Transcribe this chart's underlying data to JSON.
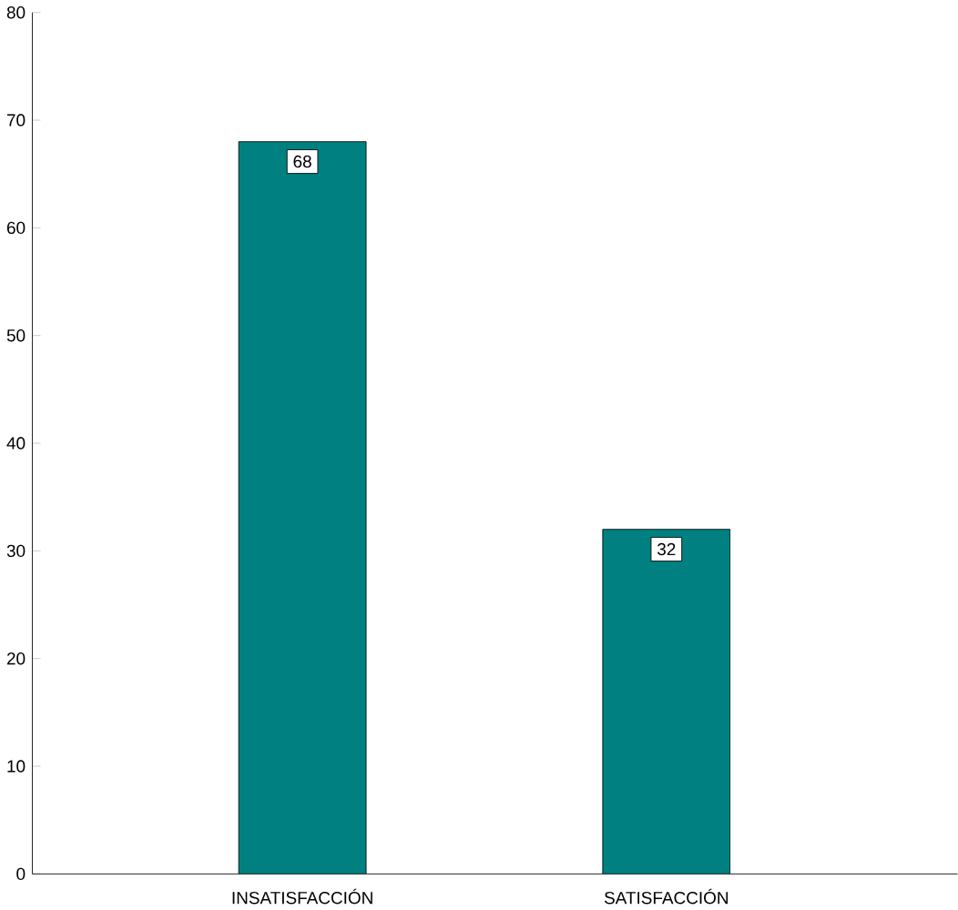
{
  "chart_data": {
    "type": "bar",
    "categories": [
      "INSATISFACCIÓN",
      "SATISFACCIÓN"
    ],
    "values": [
      68,
      32
    ],
    "color": "#008080",
    "ylim": [
      0,
      80
    ],
    "yticks": [
      0,
      10,
      20,
      30,
      40,
      50,
      60,
      70,
      80
    ],
    "data_labels": true
  }
}
